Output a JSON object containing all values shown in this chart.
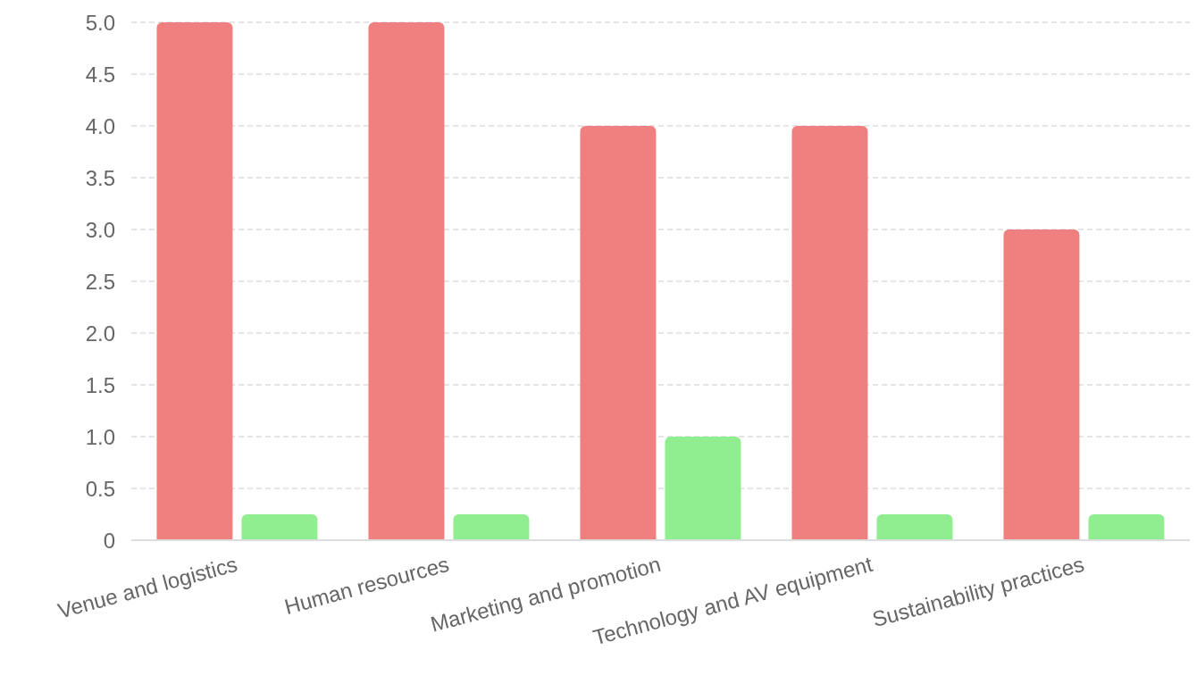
{
  "chart_data": {
    "type": "bar",
    "categories": [
      "Venue and logistics",
      "Human resources",
      "Marketing and promotion",
      "Technology and AV equipment",
      "Sustainability practices"
    ],
    "series": [
      {
        "color": "#f08080",
        "values": [
          5,
          5,
          4,
          4,
          3
        ]
      },
      {
        "color": "#90ee90",
        "values": [
          0.25,
          0.25,
          1,
          0.25,
          0.25
        ]
      }
    ],
    "ylim": [
      0,
      5
    ],
    "yticks": [
      0,
      {
        "value": 0.5,
        "label": "0.5"
      },
      {
        "value": 1,
        "label": "1.0"
      },
      {
        "value": 1.5,
        "label": "1.5"
      },
      {
        "value": 2,
        "label": "2.0"
      },
      {
        "value": 2.5,
        "label": "2.5"
      },
      {
        "value": 3,
        "label": "3.0"
      },
      {
        "value": 3.5,
        "label": "3.5"
      },
      {
        "value": 4,
        "label": "4.0"
      },
      {
        "value": 4.5,
        "label": "4.5"
      },
      {
        "value": 5,
        "label": "5.0"
      }
    ],
    "grid": "y",
    "legend": false
  }
}
